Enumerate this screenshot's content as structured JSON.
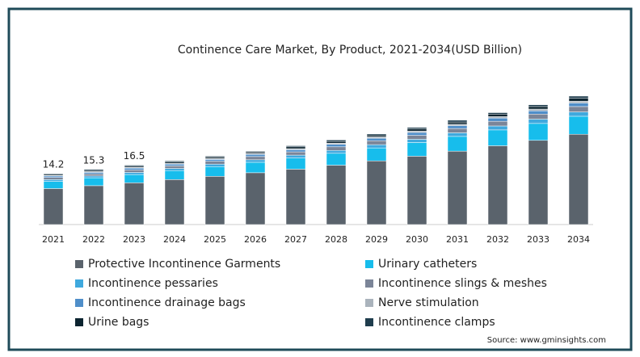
{
  "chart_data": {
    "type": "stacked_bar",
    "title": "Continence Care Market, By Product, 2021-2034(USD Billion)",
    "source": "Source: www.gminsights.com",
    "categories": [
      "2021",
      "2022",
      "2023",
      "2024",
      "2025",
      "2026",
      "2027",
      "2028",
      "2029",
      "2030",
      "2031",
      "2032",
      "2033",
      "2034"
    ],
    "total_labels": [
      "14.2",
      "15.3",
      "16.5"
    ],
    "series": [
      {
        "name": "Protective Incontinence Garments",
        "color": "#5a636c",
        "values": [
          10.0,
          10.8,
          11.6,
          12.5,
          13.4,
          14.4,
          15.4,
          16.5,
          17.7,
          19.0,
          20.4,
          21.9,
          23.4,
          25.1
        ]
      },
      {
        "name": "Urinary catheters",
        "color": "#17bdec",
        "values": [
          2.0,
          2.2,
          2.3,
          2.5,
          2.7,
          2.9,
          3.1,
          3.3,
          3.6,
          3.8,
          4.1,
          4.4,
          4.7,
          5.0
        ]
      },
      {
        "name": "Incontinence pessaries",
        "color": "#3fa9de",
        "values": [
          0.5,
          0.5,
          0.6,
          0.6,
          0.7,
          0.7,
          0.8,
          0.8,
          0.9,
          0.9,
          1.0,
          1.1,
          1.2,
          1.2
        ]
      },
      {
        "name": "Incontinence slings & meshes",
        "color": "#7b8598",
        "values": [
          0.6,
          0.6,
          0.7,
          0.7,
          0.8,
          0.9,
          0.9,
          1.0,
          1.1,
          1.1,
          1.2,
          1.3,
          1.4,
          1.5
        ]
      },
      {
        "name": "Incontinence drainage bags",
        "color": "#4f8ec9",
        "values": [
          0.4,
          0.4,
          0.5,
          0.5,
          0.5,
          0.6,
          0.6,
          0.7,
          0.7,
          0.8,
          0.8,
          0.9,
          0.9,
          1.0
        ]
      },
      {
        "name": "Nerve stimulation",
        "color": "#aab3bc",
        "values": [
          0.2,
          0.2,
          0.2,
          0.2,
          0.3,
          0.3,
          0.3,
          0.3,
          0.4,
          0.4,
          0.4,
          0.4,
          0.5,
          0.5
        ]
      },
      {
        "name": "Urine bags",
        "color": "#0c2430",
        "values": [
          0.3,
          0.3,
          0.3,
          0.4,
          0.4,
          0.4,
          0.5,
          0.5,
          0.5,
          0.6,
          0.6,
          0.7,
          0.7,
          0.8
        ]
      },
      {
        "name": "Incontinence clamps",
        "color": "#1f3d4d",
        "values": [
          0.2,
          0.3,
          0.3,
          0.3,
          0.2,
          0.2,
          0.3,
          0.4,
          0.3,
          0.4,
          0.5,
          0.4,
          0.5,
          0.6
        ]
      }
    ]
  }
}
